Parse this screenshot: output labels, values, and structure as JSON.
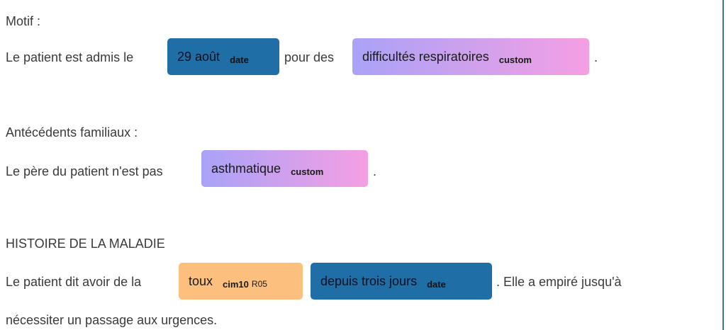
{
  "sections": {
    "motif": {
      "heading": "Motif :",
      "line_prefix": "Le patient est admis le",
      "entity_date": {
        "text": "29 août",
        "label": "date"
      },
      "line_mid": "pour des",
      "entity_custom": {
        "text": "difficultés respiratoires",
        "label": "custom"
      },
      "line_end": "."
    },
    "antecedents": {
      "heading": "Antécédents familiaux :",
      "line_prefix": "Le père du patient n'est pas",
      "entity_custom": {
        "text": "asthmatique",
        "label": "custom"
      },
      "line_end": "."
    },
    "histoire": {
      "heading": "HISTOIRE DE LA MALADIE",
      "line_prefix": "Le patient dit avoir de la",
      "entity_cim": {
        "text": "toux",
        "label": "cim10",
        "code": "R05"
      },
      "entity_date": {
        "text": "depuis trois jours",
        "label": "date"
      },
      "line_end": ". Elle a empiré jusqu'à",
      "line2": "nécessiter un passage aux urgences."
    }
  },
  "colors": {
    "date": "#1f6ea6",
    "custom_start": "#a9a2f7",
    "custom_end": "#f59fe3",
    "cim10": "#fdbf7d",
    "right_border": "#3d6fb3"
  }
}
